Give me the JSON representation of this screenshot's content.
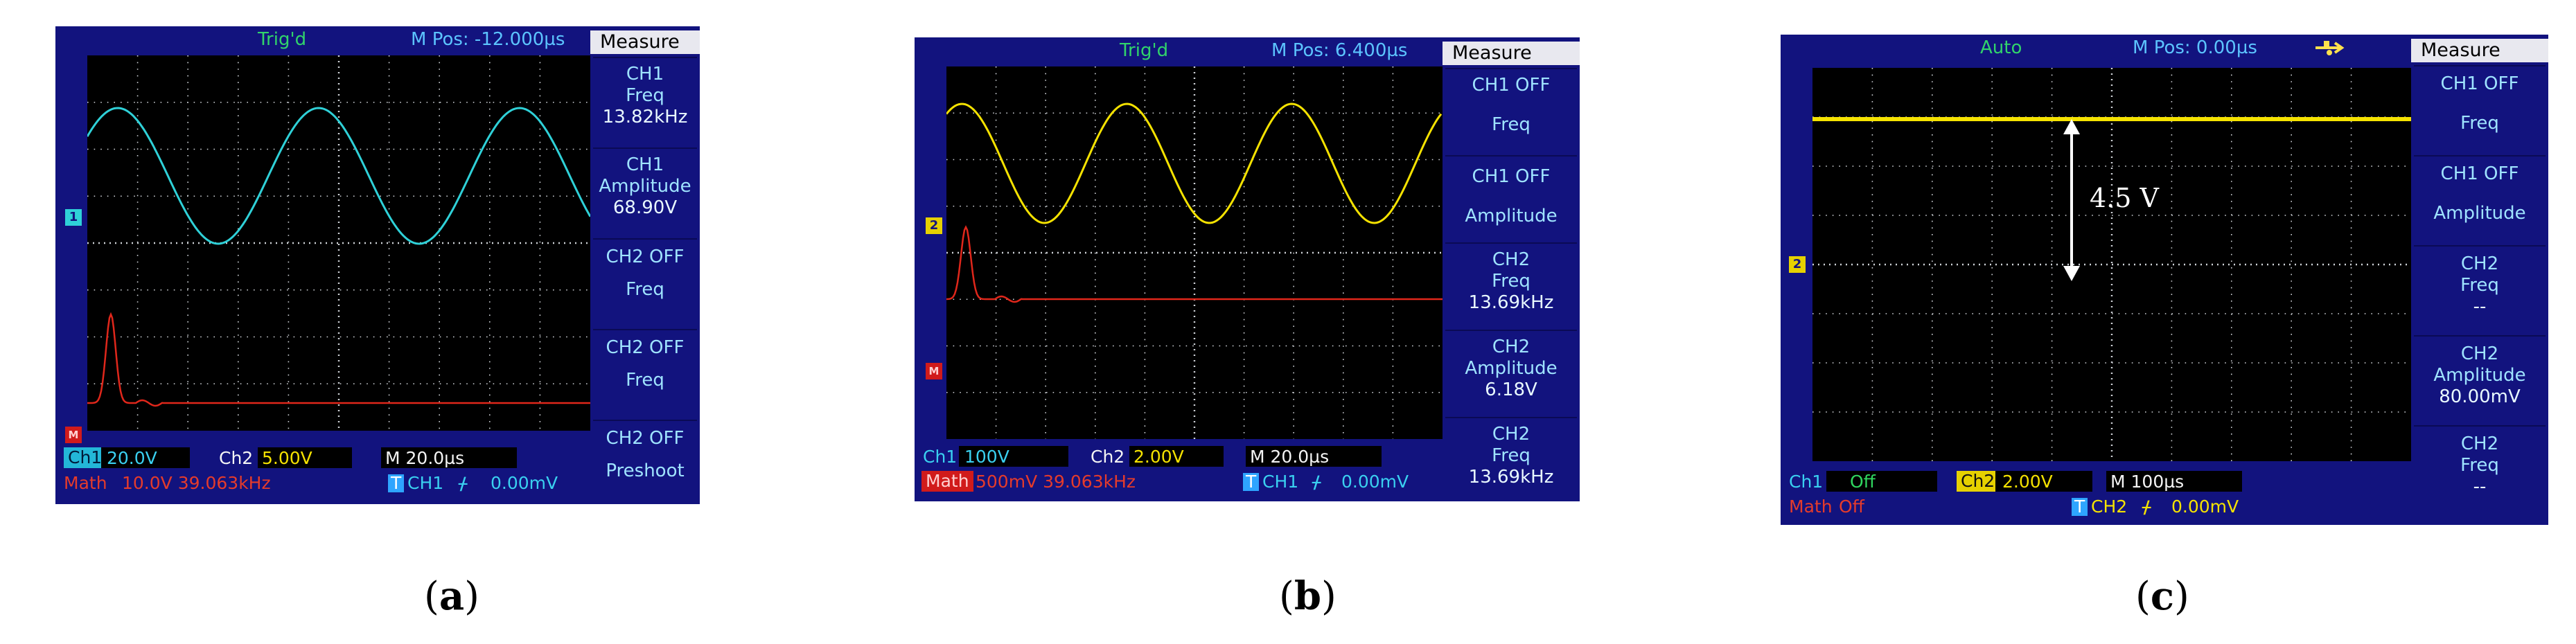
{
  "colors": {
    "frame": "#12137e",
    "ch1": "#2fd1d8",
    "ch2": "#f5e200",
    "math": "#e0271b",
    "grid_dot": "#cfd3d8"
  },
  "panels": [
    {
      "trigger": "Trig'd",
      "mpos": "M Pos: -12.000µs",
      "icon": "usb-icon",
      "measure_title": "Measure",
      "measure": [
        {
          "line1": "CH1",
          "line2": "Freq",
          "value": "13.82kHz"
        },
        {
          "line1": "CH1",
          "line2": "Amplitude",
          "value": "68.90V"
        },
        {
          "line1": "CH2  OFF",
          "line2": "Freq",
          "value": ""
        },
        {
          "line1": "CH2  OFF",
          "line2": "Freq",
          "value": ""
        },
        {
          "line1": "CH2  OFF",
          "line2": "Preshoot",
          "value": ""
        }
      ],
      "status": {
        "ch1_label": "Ch1",
        "ch1_scale": "20.0V",
        "ch2_label": "Ch2",
        "ch2_scale": "5.00V",
        "time": "M 20.0µs",
        "math_label": "Math",
        "math_scale": "10.0V 39.063kHz",
        "trig_icon": "T",
        "trig_src": "CH1",
        "trig_level": "0.00mV"
      },
      "markers": [
        "1",
        "M"
      ],
      "caption": "a"
    },
    {
      "trigger": "Trig'd",
      "mpos": "M Pos: 6.400µs",
      "icon": "usb-icon",
      "measure_title": "Measure",
      "measure": [
        {
          "line1": "CH1  OFF",
          "line2": "Freq",
          "value": ""
        },
        {
          "line1": "CH1  OFF",
          "line2": "Amplitude",
          "value": ""
        },
        {
          "line1": "CH2",
          "line2": "Freq",
          "value": "13.69kHz"
        },
        {
          "line1": "CH2",
          "line2": "Amplitude",
          "value": "6.18V"
        },
        {
          "line1": "CH2",
          "line2": "Freq",
          "value": "13.69kHz"
        }
      ],
      "status": {
        "ch1_label": "Ch1",
        "ch1_scale": "100V",
        "ch2_label": "Ch2",
        "ch2_scale": "2.00V",
        "time": "M 20.0µs",
        "math_label": "Math",
        "math_scale": "500mV 39.063kHz",
        "trig_icon": "T",
        "trig_src": "CH1",
        "trig_level": "0.00mV"
      },
      "markers": [
        "2",
        "M"
      ],
      "caption": "b"
    },
    {
      "trigger": "Auto",
      "mpos": "M Pos: 0.00µs",
      "icon": "usb-icon",
      "measure_title": "Measure",
      "measure": [
        {
          "line1": "CH1  OFF",
          "line2": "Freq",
          "value": ""
        },
        {
          "line1": "CH1  OFF",
          "line2": "Amplitude",
          "value": ""
        },
        {
          "line1": "CH2",
          "line2": "Freq",
          "value": "--"
        },
        {
          "line1": "CH2",
          "line2": "Amplitude",
          "value": "80.00mV"
        },
        {
          "line1": "CH2",
          "line2": "Freq",
          "value": "--"
        }
      ],
      "status": {
        "ch1_label": "Ch1",
        "ch1_scale": "Off",
        "ch2_label": "Ch2",
        "ch2_scale": "2.00V",
        "time": "M 100µs",
        "math_label": "Math",
        "math_scale": "Off",
        "trig_icon": "T",
        "trig_src": "CH2",
        "trig_level": "0.00mV"
      },
      "markers": [
        "2"
      ],
      "annotation": "4.5 V",
      "caption": "c"
    }
  ]
}
